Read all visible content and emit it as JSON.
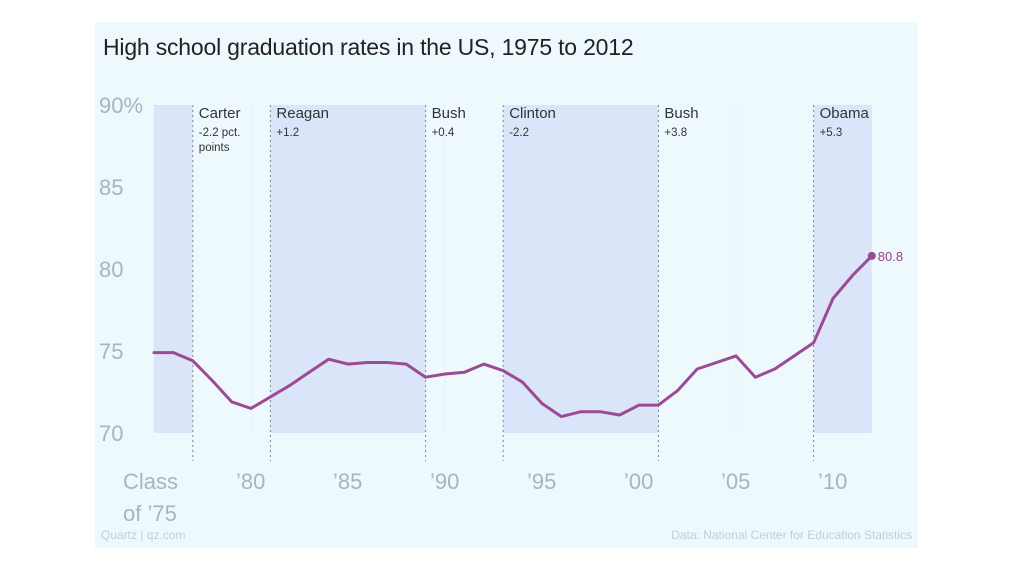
{
  "title": "High school graduation rates in the US, 1975 to 2012",
  "footer": {
    "source_left": "Quartz | qz.com",
    "source_right": "Data: National Center for Education Statistics"
  },
  "colors": {
    "line": "#9b4a94",
    "shade": "#dbe5fa",
    "background": "#eef9fd",
    "tick": "#a7b5c2"
  },
  "chart_data": {
    "type": "line",
    "title": "High school graduation rates in the US, 1975 to 2012",
    "xlabel": "",
    "ylabel": "",
    "ylim": [
      70,
      90
    ],
    "xlim": [
      1975,
      2012
    ],
    "y_ticks": [
      "90%",
      "85",
      "80",
      "75",
      "70"
    ],
    "y_tick_values": [
      90,
      85,
      80,
      75,
      70
    ],
    "x_ticks": [
      {
        "value": 1975,
        "lines": [
          "Class",
          "of ’75"
        ]
      },
      {
        "value": 1980,
        "lines": [
          "’80"
        ]
      },
      {
        "value": 1985,
        "lines": [
          "’85"
        ]
      },
      {
        "value": 1990,
        "lines": [
          "’90"
        ]
      },
      {
        "value": 1995,
        "lines": [
          "’95"
        ]
      },
      {
        "value": 2000,
        "lines": [
          "’00"
        ]
      },
      {
        "value": 2005,
        "lines": [
          "’05"
        ]
      },
      {
        "value": 2010,
        "lines": [
          "’10"
        ]
      }
    ],
    "series": [
      {
        "x": [
          1975,
          1976,
          1977,
          1978,
          1979,
          1980,
          1981,
          1982,
          1983,
          1984,
          1985,
          1986,
          1987,
          1988,
          1989,
          1990,
          1991,
          1992,
          1993,
          1994,
          1995,
          1996,
          1997,
          1998,
          1999,
          2000,
          2001,
          2002,
          2003,
          2004,
          2005,
          2006,
          2007,
          2008,
          2009,
          2010,
          2011,
          2012
        ],
        "values": [
          74.9,
          74.9,
          74.4,
          73.2,
          71.9,
          71.5,
          72.2,
          72.9,
          73.7,
          74.5,
          74.2,
          74.3,
          74.3,
          74.2,
          73.4,
          73.6,
          73.7,
          74.2,
          73.8,
          73.1,
          71.8,
          71.0,
          71.3,
          71.3,
          71.1,
          71.7,
          71.7,
          72.6,
          73.9,
          74.3,
          74.7,
          73.4,
          73.9,
          74.7,
          75.5,
          78.2,
          79.6,
          80.8
        ]
      }
    ],
    "end_label": "80.8",
    "grid": false,
    "presidencies": [
      {
        "name": "",
        "change": [],
        "start": 1975,
        "end": 1977,
        "shaded": true
      },
      {
        "name": "Carter",
        "change": [
          "-2.2 pct.",
          "points"
        ],
        "start": 1977,
        "end": 1981,
        "shaded": false
      },
      {
        "name": "Reagan",
        "change": [
          "+1.2"
        ],
        "start": 1981,
        "end": 1989,
        "shaded": true
      },
      {
        "name": "Bush",
        "change": [
          "+0.4"
        ],
        "start": 1989,
        "end": 1993,
        "shaded": false
      },
      {
        "name": "Clinton",
        "change": [
          "-2.2"
        ],
        "start": 1993,
        "end": 2001,
        "shaded": true
      },
      {
        "name": "Bush",
        "change": [
          "+3.8"
        ],
        "start": 2001,
        "end": 2009,
        "shaded": false
      },
      {
        "name": "Obama",
        "change": [
          "+5.3"
        ],
        "start": 2009,
        "end": 2012,
        "shaded": true
      }
    ]
  }
}
